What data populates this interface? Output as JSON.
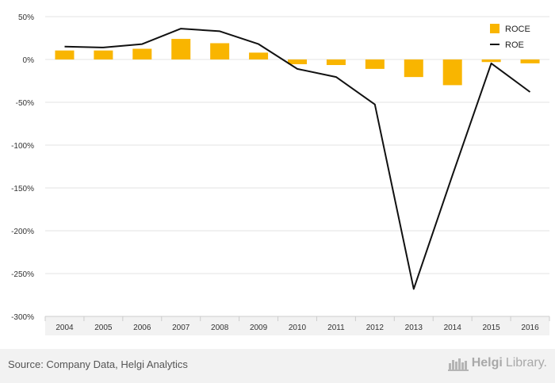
{
  "chart_data": {
    "type": "bar",
    "categories": [
      "2004",
      "2005",
      "2006",
      "2007",
      "2008",
      "2009",
      "2010",
      "2011",
      "2012",
      "2013",
      "2014",
      "2015",
      "2016"
    ],
    "series": [
      {
        "name": "ROCE",
        "type": "bar",
        "color": "#f9b500",
        "values": [
          10.5,
          10.5,
          12.5,
          24,
          19,
          8,
          -5.5,
          -6.5,
          -11,
          -20.5,
          -30,
          -3,
          -4.5
        ]
      },
      {
        "name": "ROE",
        "type": "line",
        "color": "#111111",
        "values": [
          15,
          14,
          18,
          36,
          33,
          18,
          -11,
          -20.5,
          -52.5,
          -268,
          -135,
          -4.5,
          -38
        ]
      }
    ],
    "ylim": [
      -300,
      50
    ],
    "yticks": [
      50,
      0,
      -50,
      -100,
      -150,
      -200,
      -250,
      -300
    ],
    "ytick_labels": [
      "50%",
      "0%",
      "-50%",
      "-100%",
      "-150%",
      "-200%",
      "-250%",
      "-300%"
    ],
    "title": "",
    "xlabel": "",
    "ylabel": "",
    "grid": true,
    "legend_position": "top-right"
  },
  "footer": {
    "source": "Source: Company Data, Helgi Analytics",
    "brand_bold": "Helgi",
    "brand_light": "Library."
  }
}
